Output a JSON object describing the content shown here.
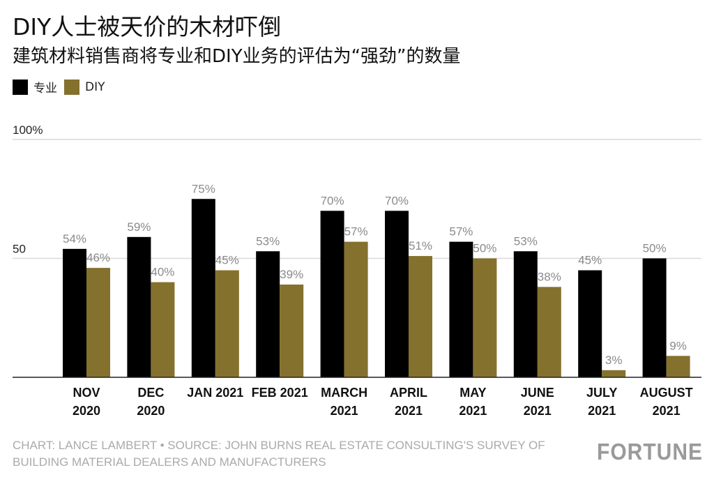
{
  "title": "DIY人士被天价的木材吓倒",
  "subtitle": "建筑材料销售商将专业和DIY业务的评估为“强劲”的数量",
  "colors": {
    "pro": "#000000",
    "diy": "#85712e",
    "label": "#8a8a8a",
    "grid": "#d9d9d9"
  },
  "footer": {
    "credit": "CHART: LANCE LAMBERT • SOURCE: JOHN BURNS REAL ESTATE CONSULTING'S SURVEY OF BUILDING MATERIAL DEALERS AND MANUFACTURERS",
    "brand": "FORTUNE"
  },
  "chart_data": {
    "type": "bar",
    "title": "DIY人士被天价的木材吓倒",
    "subtitle": "建筑材料销售商将专业和DIY业务的评估为“强劲”的数量",
    "categories": [
      [
        "NOV",
        "2020"
      ],
      [
        "DEC",
        "2020"
      ],
      [
        "JAN 2021"
      ],
      [
        "FEB 2021"
      ],
      [
        "MARCH",
        "2021"
      ],
      [
        "APRIL",
        "2021"
      ],
      [
        "MAY",
        "2021"
      ],
      [
        "JUNE",
        "2021"
      ],
      [
        "JULY",
        "2021"
      ],
      [
        "AUGUST",
        "2021"
      ]
    ],
    "series": [
      {
        "name": "专业",
        "values": [
          54,
          59,
          75,
          53,
          70,
          70,
          57,
          53,
          45,
          50
        ]
      },
      {
        "name": "DIY",
        "values": [
          46,
          40,
          45,
          39,
          57,
          51,
          50,
          38,
          3,
          9
        ]
      }
    ],
    "yticks": [
      {
        "value": 100,
        "label": "100%"
      },
      {
        "value": 50,
        "label": "50"
      }
    ],
    "ylim": [
      0,
      100
    ],
    "grid": true,
    "legend": "top-left",
    "value_suffix": "%"
  }
}
